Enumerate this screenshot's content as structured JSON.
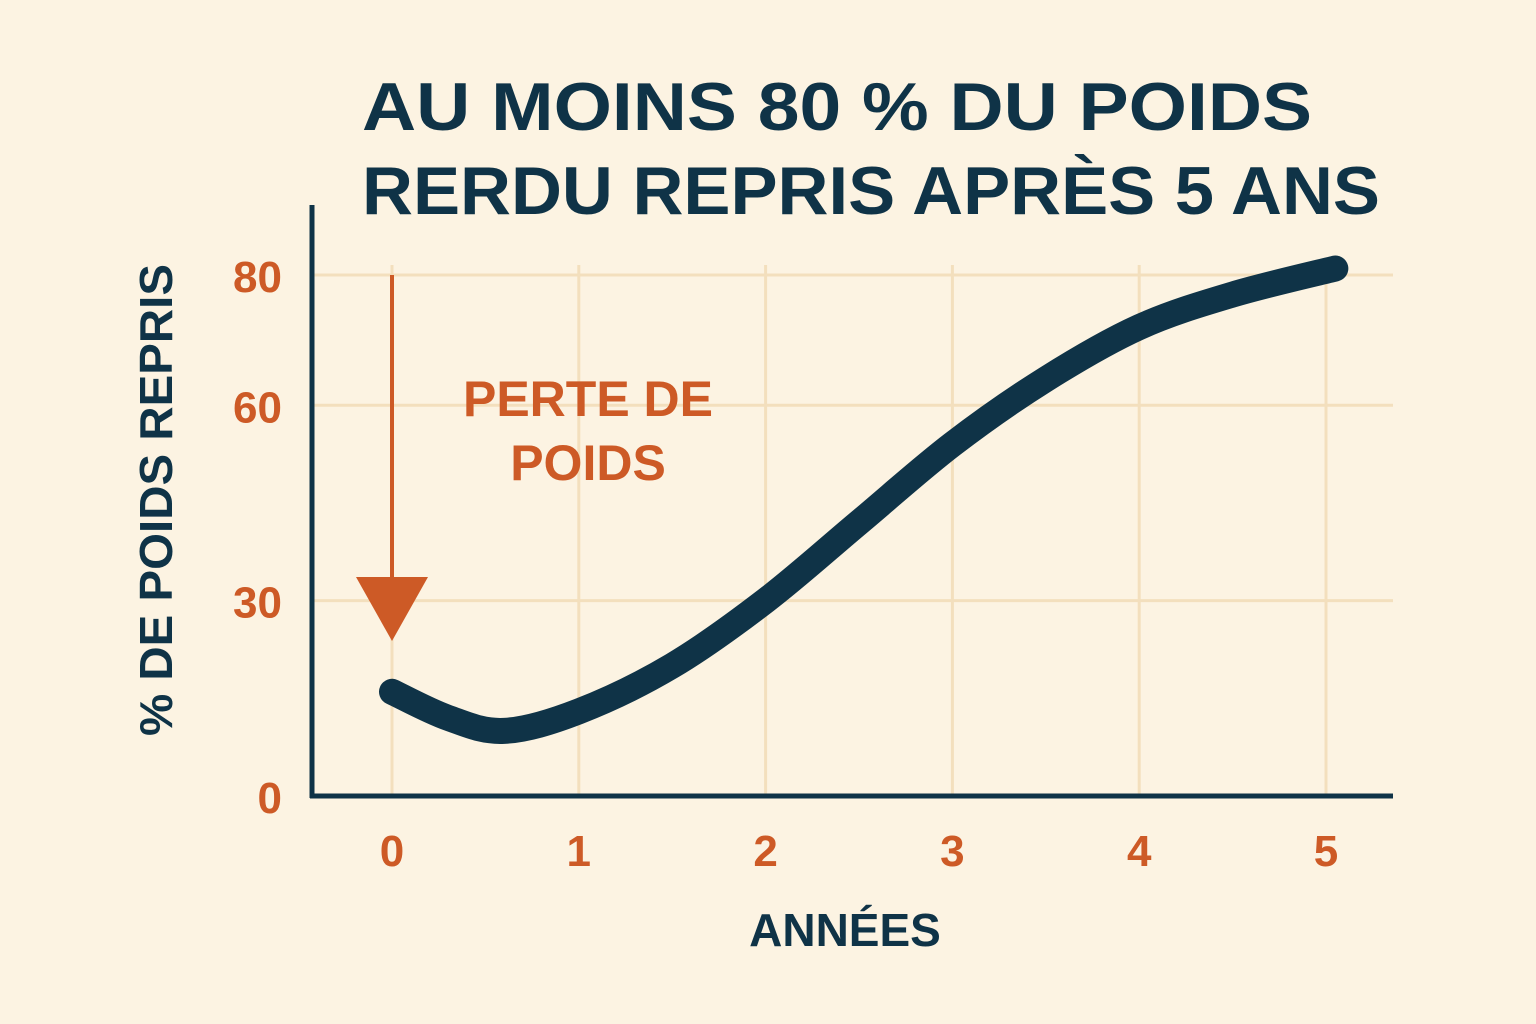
{
  "colors": {
    "background": "#fcf3e2",
    "grid": "#f3dfbd",
    "axis": "#0f3347",
    "line": "#0f3347",
    "accent": "#cd5a26"
  },
  "chart_data": {
    "type": "line",
    "title_lines": [
      "AU MOINS 80 % DU POIDS",
      "RERDU REPRIS APRÈS 5 ANS"
    ],
    "xlabel": "ANNÉES",
    "ylabel": "% DE POIDS REPRIS",
    "x_ticks": [
      "0",
      "1",
      "2",
      "3",
      "4",
      "5"
    ],
    "y_ticks": [
      "0",
      "30",
      "60",
      "80"
    ],
    "y_tick_values": [
      0,
      30,
      60,
      80
    ],
    "xlim": [
      -0.45,
      5.3
    ],
    "ylim": [
      0,
      90
    ],
    "grid": true,
    "series": [
      {
        "x": [
          0,
          0.3,
          0.6,
          1.0,
          1.5,
          2.0,
          2.5,
          3.0,
          3.5,
          4.0,
          4.5,
          5.05
        ],
        "y": [
          16,
          12,
          10,
          13,
          20,
          30,
          42,
          54,
          64,
          72,
          77,
          81
        ]
      }
    ],
    "annotation": {
      "lines": [
        "PERTE DE",
        "POIDS"
      ],
      "arrow_x": 0,
      "arrow_from_y": 80,
      "arrow_to_y": 27
    }
  }
}
